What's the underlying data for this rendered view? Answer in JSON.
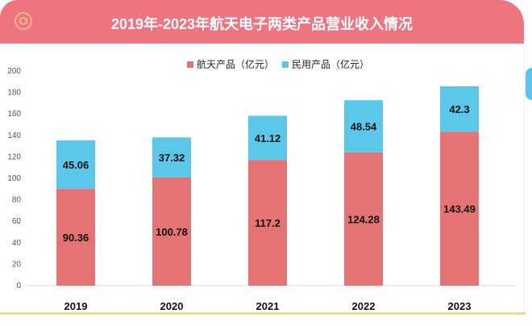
{
  "header": {
    "title": "2019年-2023年航天电子两类产品营业收入情况",
    "icon": "concentric-circles-icon"
  },
  "chart_data": {
    "type": "bar",
    "stacked": true,
    "title": "2019年-2023年航天电子两类产品营业收入情况",
    "categories": [
      "2019",
      "2020",
      "2021",
      "2022",
      "2023"
    ],
    "series": [
      {
        "name": "航天产品（亿元）",
        "color": "#e57373",
        "values": [
          90.36,
          100.78,
          117.2,
          124.28,
          143.49
        ],
        "labels": [
          "90.36",
          "100.78",
          "117.2",
          "124.28",
          "143.49"
        ]
      },
      {
        "name": "民用产品（亿元）",
        "color": "#5bc8ea",
        "values": [
          45.06,
          37.32,
          41.12,
          48.54,
          42.3
        ],
        "labels": [
          "45.06",
          "37.32",
          "41.12",
          "48.54",
          "42.3"
        ]
      }
    ],
    "yticks": [
      "0",
      "20",
      "40",
      "60",
      "80",
      "100",
      "120",
      "140",
      "160",
      "180",
      "200"
    ],
    "ylim": [
      0,
      200
    ],
    "xlabel": "",
    "ylabel": "",
    "legend": "top-center",
    "grid": false
  }
}
